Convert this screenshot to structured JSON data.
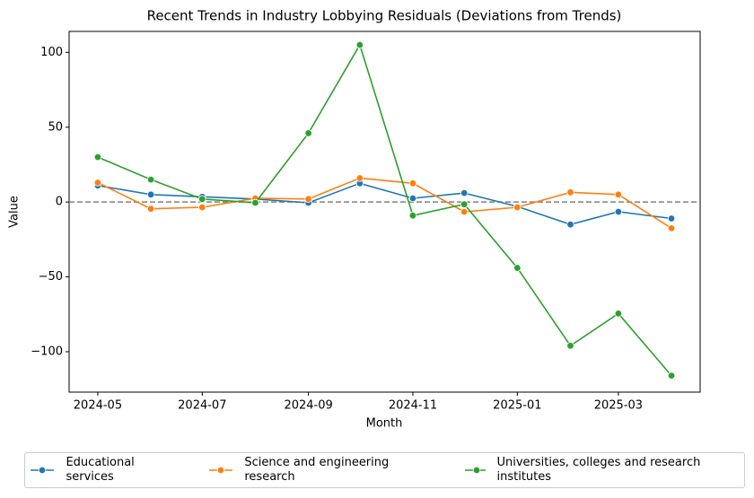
{
  "chart_data": {
    "type": "line",
    "title": "Recent Trends in Industry Lobbying Residuals (Deviations from Trends)",
    "x_label": "Month",
    "y_label": "Value",
    "x": [
      "2024-05",
      "2024-06",
      "2024-07",
      "2024-08",
      "2024-09",
      "2024-10",
      "2024-11",
      "2024-12",
      "2025-01",
      "2025-02",
      "2025-03",
      "2025-04"
    ],
    "series": [
      {
        "name": "Educational services",
        "color": "#1f77b4",
        "values": [
          11,
          5,
          3.5,
          2,
          -0.5,
          12.5,
          2.5,
          6,
          -3,
          -15,
          -6.5,
          -11
        ]
      },
      {
        "name": "Science and engineering research",
        "color": "#ff7f0e",
        "values": [
          13,
          -4.5,
          -3.5,
          2.5,
          2,
          16,
          12.5,
          -6.5,
          -3.5,
          6.5,
          5,
          -17.5
        ]
      },
      {
        "name": "Universities, colleges and research institutes",
        "color": "#2ca02c",
        "values": [
          30,
          15,
          2,
          -0.5,
          46,
          105,
          -9,
          -1.5,
          -44,
          -96,
          -74.5,
          -116
        ]
      }
    ],
    "ylim": [
      -127,
      114
    ],
    "yticks": [
      {
        "value": -100,
        "label": "−100"
      },
      {
        "value": -50,
        "label": "−50"
      },
      0,
      50,
      100
    ],
    "xticks": [
      "2024-05",
      "2024-07",
      "2024-09",
      "2024-11",
      "2025-01",
      "2025-03"
    ],
    "reference_line": 0,
    "legend": "bottom"
  }
}
